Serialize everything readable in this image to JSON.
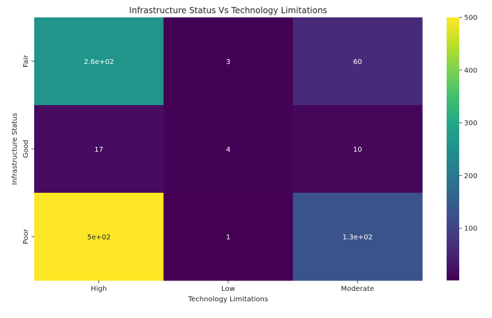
{
  "chart_data": {
    "type": "heatmap",
    "title": "Infrastructure Status Vs Technology Limitations",
    "xlabel": "Technology Limitations",
    "ylabel": "Infrastructure Status",
    "x_categories": [
      "High",
      "Low",
      "Moderate"
    ],
    "y_categories": [
      "Fair",
      "Good",
      "Poor"
    ],
    "values": [
      [
        260,
        3,
        60
      ],
      [
        17,
        4,
        10
      ],
      [
        500,
        1,
        130
      ]
    ],
    "annotations": [
      [
        "2.6e+02",
        "3",
        "60"
      ],
      [
        "17",
        "4",
        "10"
      ],
      [
        "5e+02",
        "1",
        "1.3e+02"
      ]
    ],
    "colormap": "viridis",
    "vmin": 1,
    "vmax": 500,
    "colorbar_ticks": [
      100,
      200,
      300,
      400,
      500
    ]
  }
}
